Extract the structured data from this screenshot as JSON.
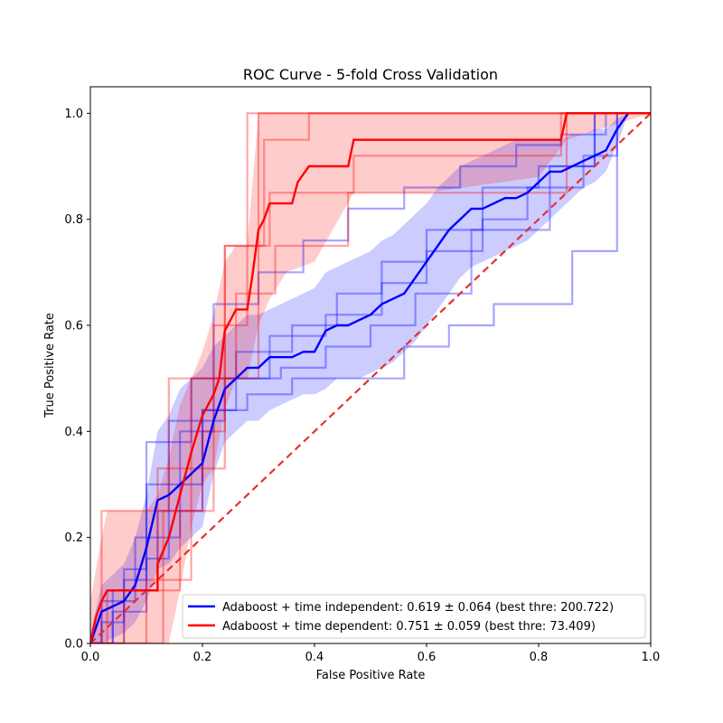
{
  "chart_data": {
    "type": "line",
    "title": "ROC Curve - 5-fold Cross Validation",
    "xlabel": "False Positive Rate",
    "ylabel": "True Positive Rate",
    "xlim": [
      0.0,
      1.0
    ],
    "ylim": [
      0.0,
      1.05
    ],
    "xticks": [
      "0.0",
      "0.2",
      "0.4",
      "0.6",
      "0.8",
      "1.0"
    ],
    "yticks": [
      "0.0",
      "0.2",
      "0.4",
      "0.6",
      "0.8",
      "1.0"
    ],
    "grid": false,
    "legend_position": "lower-right",
    "colors": {
      "independent": "#0000ff",
      "dependent": "#ff0000",
      "chance": "#e83030"
    },
    "chance_line": {
      "x": [
        0,
        1
      ],
      "y": [
        0,
        1
      ]
    },
    "series": [
      {
        "name": "Adaboost + time independent: 0.619 ± 0.064 (best thre: 200.722)",
        "key": "independent",
        "mean": {
          "x": [
            0.0,
            0.02,
            0.04,
            0.06,
            0.08,
            0.1,
            0.12,
            0.14,
            0.16,
            0.18,
            0.2,
            0.22,
            0.24,
            0.26,
            0.28,
            0.3,
            0.32,
            0.34,
            0.36,
            0.38,
            0.4,
            0.42,
            0.44,
            0.46,
            0.48,
            0.5,
            0.52,
            0.54,
            0.56,
            0.58,
            0.6,
            0.62,
            0.64,
            0.66,
            0.68,
            0.7,
            0.72,
            0.74,
            0.76,
            0.78,
            0.8,
            0.82,
            0.84,
            0.86,
            0.88,
            0.9,
            0.92,
            0.94,
            0.96
          ],
          "y": [
            0.0,
            0.06,
            0.07,
            0.08,
            0.11,
            0.18,
            0.27,
            0.28,
            0.3,
            0.32,
            0.34,
            0.42,
            0.48,
            0.5,
            0.52,
            0.52,
            0.54,
            0.54,
            0.54,
            0.55,
            0.55,
            0.59,
            0.6,
            0.6,
            0.61,
            0.62,
            0.64,
            0.65,
            0.66,
            0.69,
            0.72,
            0.75,
            0.78,
            0.8,
            0.82,
            0.82,
            0.83,
            0.84,
            0.84,
            0.85,
            0.87,
            0.89,
            0.89,
            0.9,
            0.91,
            0.92,
            0.93,
            0.97,
            1.0
          ]
        },
        "band_upper": [
          0.02,
          0.11,
          0.13,
          0.15,
          0.2,
          0.28,
          0.4,
          0.43,
          0.48,
          0.5,
          0.52,
          0.56,
          0.58,
          0.6,
          0.62,
          0.62,
          0.63,
          0.64,
          0.65,
          0.66,
          0.67,
          0.7,
          0.71,
          0.72,
          0.73,
          0.74,
          0.76,
          0.77,
          0.79,
          0.81,
          0.83,
          0.86,
          0.88,
          0.9,
          0.91,
          0.92,
          0.93,
          0.94,
          0.95,
          0.95,
          0.95,
          0.95,
          0.95,
          0.96,
          0.96,
          0.97,
          0.97,
          0.99,
          1.0
        ],
        "band_lower": [
          0.0,
          0.0,
          0.01,
          0.02,
          0.04,
          0.08,
          0.14,
          0.15,
          0.18,
          0.2,
          0.22,
          0.32,
          0.38,
          0.4,
          0.42,
          0.42,
          0.44,
          0.45,
          0.46,
          0.47,
          0.47,
          0.48,
          0.5,
          0.5,
          0.5,
          0.51,
          0.52,
          0.53,
          0.55,
          0.57,
          0.6,
          0.63,
          0.66,
          0.69,
          0.71,
          0.72,
          0.73,
          0.74,
          0.75,
          0.76,
          0.78,
          0.8,
          0.82,
          0.84,
          0.86,
          0.87,
          0.89,
          0.94,
          1.0
        ],
        "folds": [
          {
            "x": [
              0,
              0.02,
              0.02,
              0.08,
              0.08,
              0.16,
              0.16,
              0.22,
              0.22,
              0.26,
              0.26,
              0.36,
              0.36,
              0.44,
              0.44,
              0.52,
              0.52,
              0.6,
              0.6,
              0.7,
              0.7,
              0.8,
              0.8,
              0.9,
              0.9,
              1.0
            ],
            "y": [
              0,
              0,
              0.08,
              0.08,
              0.2,
              0.2,
              0.4,
              0.4,
              0.5,
              0.5,
              0.55,
              0.55,
              0.6,
              0.6,
              0.66,
              0.66,
              0.72,
              0.72,
              0.78,
              0.78,
              0.86,
              0.86,
              0.9,
              0.9,
              1.0,
              1.0
            ]
          },
          {
            "x": [
              0,
              0.06,
              0.06,
              0.1,
              0.1,
              0.14,
              0.14,
              0.24,
              0.24,
              0.32,
              0.32,
              0.42,
              0.42,
              0.52,
              0.52,
              0.6,
              0.6,
              0.7,
              0.7,
              0.78,
              0.78,
              0.88,
              0.88,
              0.94,
              0.94,
              1.0
            ],
            "y": [
              0,
              0,
              0.12,
              0.12,
              0.3,
              0.3,
              0.42,
              0.42,
              0.5,
              0.5,
              0.58,
              0.58,
              0.62,
              0.62,
              0.68,
              0.68,
              0.74,
              0.74,
              0.8,
              0.8,
              0.86,
              0.86,
              0.92,
              0.92,
              1.0,
              1.0
            ]
          },
          {
            "x": [
              0,
              0.04,
              0.04,
              0.12,
              0.12,
              0.2,
              0.2,
              0.28,
              0.28,
              0.36,
              0.36,
              0.48,
              0.48,
              0.56,
              0.56,
              0.64,
              0.64,
              0.72,
              0.72,
              0.86,
              0.86,
              0.94,
              0.94,
              1.0
            ],
            "y": [
              0,
              0,
              0.1,
              0.1,
              0.25,
              0.25,
              0.44,
              0.44,
              0.47,
              0.47,
              0.5,
              0.5,
              0.5,
              0.5,
              0.56,
              0.56,
              0.6,
              0.6,
              0.64,
              0.64,
              0.74,
              0.74,
              1.0,
              1.0
            ]
          },
          {
            "x": [
              0,
              0.02,
              0.02,
              0.06,
              0.06,
              0.1,
              0.1,
              0.18,
              0.18,
              0.22,
              0.22,
              0.3,
              0.3,
              0.38,
              0.38,
              0.46,
              0.46,
              0.56,
              0.56,
              0.66,
              0.66,
              0.76,
              0.76,
              0.84,
              0.84,
              0.92,
              0.92,
              1.0
            ],
            "y": [
              0,
              0,
              0.04,
              0.04,
              0.14,
              0.14,
              0.38,
              0.38,
              0.5,
              0.5,
              0.64,
              0.64,
              0.7,
              0.7,
              0.76,
              0.76,
              0.82,
              0.82,
              0.86,
              0.86,
              0.9,
              0.9,
              0.94,
              0.94,
              0.96,
              0.96,
              1.0,
              1.0
            ]
          },
          {
            "x": [
              0,
              0.04,
              0.04,
              0.1,
              0.1,
              0.14,
              0.14,
              0.2,
              0.2,
              0.26,
              0.26,
              0.34,
              0.34,
              0.42,
              0.42,
              0.5,
              0.5,
              0.58,
              0.58,
              0.68,
              0.68,
              0.82,
              0.82,
              0.9,
              0.9,
              1.0
            ],
            "y": [
              0,
              0,
              0.06,
              0.06,
              0.16,
              0.16,
              0.3,
              0.3,
              0.44,
              0.44,
              0.5,
              0.5,
              0.52,
              0.52,
              0.56,
              0.56,
              0.6,
              0.6,
              0.66,
              0.66,
              0.78,
              0.78,
              0.9,
              0.9,
              1.0,
              1.0
            ]
          }
        ]
      },
      {
        "name": "Adaboost + time dependent: 0.751 ± 0.059 (best thre: 73.409)",
        "key": "dependent",
        "mean": {
          "x": [
            0.0,
            0.01,
            0.02,
            0.03,
            0.05,
            0.08,
            0.12,
            0.12,
            0.14,
            0.16,
            0.18,
            0.2,
            0.22,
            0.23,
            0.24,
            0.26,
            0.28,
            0.29,
            0.3,
            0.31,
            0.32,
            0.36,
            0.37,
            0.39,
            0.46,
            0.47,
            0.84,
            0.85,
            1.0
          ],
          "y": [
            0.0,
            0.05,
            0.08,
            0.1,
            0.1,
            0.1,
            0.1,
            0.15,
            0.2,
            0.28,
            0.36,
            0.43,
            0.47,
            0.5,
            0.59,
            0.63,
            0.63,
            0.7,
            0.78,
            0.8,
            0.83,
            0.83,
            0.87,
            0.9,
            0.9,
            0.95,
            0.95,
            1.0,
            1.0
          ]
        },
        "band_x": [
          0.0,
          0.02,
          0.03,
          0.06,
          0.1,
          0.12,
          0.14,
          0.16,
          0.18,
          0.2,
          0.22,
          0.24,
          0.26,
          0.28,
          0.3,
          0.32,
          0.35,
          0.4,
          0.47,
          0.6,
          0.8,
          0.85,
          1.0
        ],
        "band_upper": [
          0.08,
          0.2,
          0.25,
          0.25,
          0.25,
          0.28,
          0.35,
          0.45,
          0.5,
          0.55,
          0.62,
          0.72,
          0.75,
          0.75,
          1.0,
          1.0,
          1.0,
          1.0,
          1.0,
          1.0,
          1.0,
          1.0,
          1.0
        ],
        "band_lower": [
          0.0,
          0.0,
          0.0,
          0.0,
          0.0,
          0.0,
          0.0,
          0.1,
          0.22,
          0.3,
          0.33,
          0.44,
          0.5,
          0.5,
          0.6,
          0.65,
          0.7,
          0.72,
          0.85,
          0.85,
          0.88,
          0.95,
          1.0
        ],
        "folds": [
          {
            "x": [
              0,
              0.02,
              0.02,
              0.14,
              0.14,
              0.22,
              0.22,
              0.28,
              0.28,
              0.4,
              0.4,
              0.85,
              0.85,
              1.0
            ],
            "y": [
              0,
              0,
              0.25,
              0.25,
              0.5,
              0.5,
              0.6,
              0.6,
              1.0,
              1.0,
              1.0,
              1.0,
              1.0,
              1.0
            ]
          },
          {
            "x": [
              0,
              0.03,
              0.03,
              0.12,
              0.12,
              0.24,
              0.24,
              0.32,
              0.32,
              0.47,
              0.47,
              0.84,
              0.84,
              1.0
            ],
            "y": [
              0,
              0,
              0.1,
              0.1,
              0.33,
              0.33,
              0.75,
              0.75,
              0.85,
              0.85,
              0.92,
              0.92,
              1.0,
              1.0
            ]
          },
          {
            "x": [
              0,
              0.06,
              0.06,
              0.16,
              0.16,
              0.22,
              0.22,
              0.3,
              0.3,
              0.34,
              0.34,
              0.85,
              0.85,
              1.0
            ],
            "y": [
              0,
              0,
              0.1,
              0.1,
              0.25,
              0.25,
              0.5,
              0.5,
              1.0,
              1.0,
              1.0,
              1.0,
              1.0,
              1.0
            ]
          },
          {
            "x": [
              0,
              0.1,
              0.1,
              0.18,
              0.18,
              0.26,
              0.26,
              0.33,
              0.33,
              0.46,
              0.46,
              0.85,
              0.85,
              1.0
            ],
            "y": [
              0,
              0,
              0.12,
              0.12,
              0.5,
              0.5,
              0.66,
              0.66,
              0.75,
              0.75,
              0.85,
              0.85,
              1.0,
              1.0
            ]
          },
          {
            "x": [
              0,
              0.13,
              0.13,
              0.2,
              0.2,
              0.24,
              0.24,
              0.31,
              0.31,
              0.39,
              0.39,
              0.87,
              0.87,
              1.0
            ],
            "y": [
              0,
              0,
              0.25,
              0.25,
              0.4,
              0.4,
              0.75,
              0.75,
              0.95,
              0.95,
              1.0,
              1.0,
              1.0,
              1.0
            ]
          }
        ]
      }
    ]
  }
}
